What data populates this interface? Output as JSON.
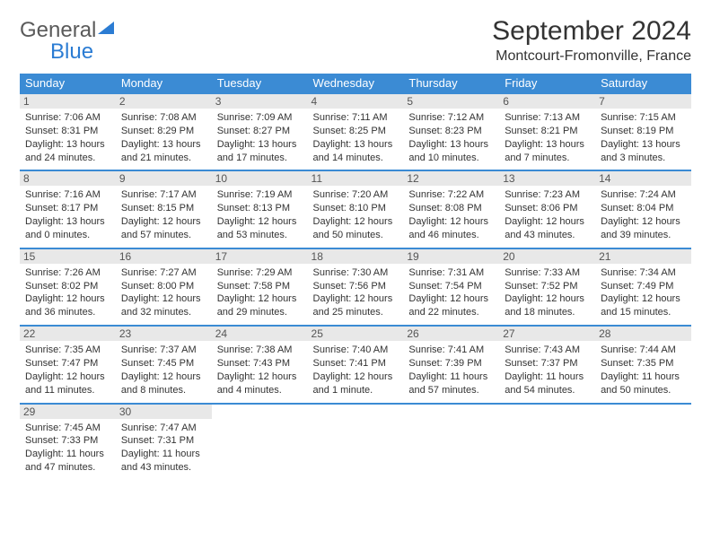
{
  "logo": {
    "word1": "General",
    "word2": "Blue"
  },
  "title": "September 2024",
  "location": "Montcourt-Fromonville, France",
  "colors": {
    "header_bg": "#3b8bd4",
    "header_text": "#ffffff",
    "row_divider": "#3b8bd4",
    "daynum_bg": "#e8e8e8",
    "logo_gray": "#5a5a5a",
    "logo_blue": "#2b7cd3",
    "body_text": "#333333",
    "background": "#ffffff"
  },
  "typography": {
    "title_fontsize": 30,
    "location_fontsize": 16,
    "dayheader_fontsize": 13,
    "daynum_fontsize": 12,
    "cell_fontsize": 11
  },
  "day_headers": [
    "Sunday",
    "Monday",
    "Tuesday",
    "Wednesday",
    "Thursday",
    "Friday",
    "Saturday"
  ],
  "weeks": [
    [
      {
        "n": "1",
        "sr": "Sunrise: 7:06 AM",
        "ss": "Sunset: 8:31 PM",
        "d1": "Daylight: 13 hours",
        "d2": "and 24 minutes."
      },
      {
        "n": "2",
        "sr": "Sunrise: 7:08 AM",
        "ss": "Sunset: 8:29 PM",
        "d1": "Daylight: 13 hours",
        "d2": "and 21 minutes."
      },
      {
        "n": "3",
        "sr": "Sunrise: 7:09 AM",
        "ss": "Sunset: 8:27 PM",
        "d1": "Daylight: 13 hours",
        "d2": "and 17 minutes."
      },
      {
        "n": "4",
        "sr": "Sunrise: 7:11 AM",
        "ss": "Sunset: 8:25 PM",
        "d1": "Daylight: 13 hours",
        "d2": "and 14 minutes."
      },
      {
        "n": "5",
        "sr": "Sunrise: 7:12 AM",
        "ss": "Sunset: 8:23 PM",
        "d1": "Daylight: 13 hours",
        "d2": "and 10 minutes."
      },
      {
        "n": "6",
        "sr": "Sunrise: 7:13 AM",
        "ss": "Sunset: 8:21 PM",
        "d1": "Daylight: 13 hours",
        "d2": "and 7 minutes."
      },
      {
        "n": "7",
        "sr": "Sunrise: 7:15 AM",
        "ss": "Sunset: 8:19 PM",
        "d1": "Daylight: 13 hours",
        "d2": "and 3 minutes."
      }
    ],
    [
      {
        "n": "8",
        "sr": "Sunrise: 7:16 AM",
        "ss": "Sunset: 8:17 PM",
        "d1": "Daylight: 13 hours",
        "d2": "and 0 minutes."
      },
      {
        "n": "9",
        "sr": "Sunrise: 7:17 AM",
        "ss": "Sunset: 8:15 PM",
        "d1": "Daylight: 12 hours",
        "d2": "and 57 minutes."
      },
      {
        "n": "10",
        "sr": "Sunrise: 7:19 AM",
        "ss": "Sunset: 8:13 PM",
        "d1": "Daylight: 12 hours",
        "d2": "and 53 minutes."
      },
      {
        "n": "11",
        "sr": "Sunrise: 7:20 AM",
        "ss": "Sunset: 8:10 PM",
        "d1": "Daylight: 12 hours",
        "d2": "and 50 minutes."
      },
      {
        "n": "12",
        "sr": "Sunrise: 7:22 AM",
        "ss": "Sunset: 8:08 PM",
        "d1": "Daylight: 12 hours",
        "d2": "and 46 minutes."
      },
      {
        "n": "13",
        "sr": "Sunrise: 7:23 AM",
        "ss": "Sunset: 8:06 PM",
        "d1": "Daylight: 12 hours",
        "d2": "and 43 minutes."
      },
      {
        "n": "14",
        "sr": "Sunrise: 7:24 AM",
        "ss": "Sunset: 8:04 PM",
        "d1": "Daylight: 12 hours",
        "d2": "and 39 minutes."
      }
    ],
    [
      {
        "n": "15",
        "sr": "Sunrise: 7:26 AM",
        "ss": "Sunset: 8:02 PM",
        "d1": "Daylight: 12 hours",
        "d2": "and 36 minutes."
      },
      {
        "n": "16",
        "sr": "Sunrise: 7:27 AM",
        "ss": "Sunset: 8:00 PM",
        "d1": "Daylight: 12 hours",
        "d2": "and 32 minutes."
      },
      {
        "n": "17",
        "sr": "Sunrise: 7:29 AM",
        "ss": "Sunset: 7:58 PM",
        "d1": "Daylight: 12 hours",
        "d2": "and 29 minutes."
      },
      {
        "n": "18",
        "sr": "Sunrise: 7:30 AM",
        "ss": "Sunset: 7:56 PM",
        "d1": "Daylight: 12 hours",
        "d2": "and 25 minutes."
      },
      {
        "n": "19",
        "sr": "Sunrise: 7:31 AM",
        "ss": "Sunset: 7:54 PM",
        "d1": "Daylight: 12 hours",
        "d2": "and 22 minutes."
      },
      {
        "n": "20",
        "sr": "Sunrise: 7:33 AM",
        "ss": "Sunset: 7:52 PM",
        "d1": "Daylight: 12 hours",
        "d2": "and 18 minutes."
      },
      {
        "n": "21",
        "sr": "Sunrise: 7:34 AM",
        "ss": "Sunset: 7:49 PM",
        "d1": "Daylight: 12 hours",
        "d2": "and 15 minutes."
      }
    ],
    [
      {
        "n": "22",
        "sr": "Sunrise: 7:35 AM",
        "ss": "Sunset: 7:47 PM",
        "d1": "Daylight: 12 hours",
        "d2": "and 11 minutes."
      },
      {
        "n": "23",
        "sr": "Sunrise: 7:37 AM",
        "ss": "Sunset: 7:45 PM",
        "d1": "Daylight: 12 hours",
        "d2": "and 8 minutes."
      },
      {
        "n": "24",
        "sr": "Sunrise: 7:38 AM",
        "ss": "Sunset: 7:43 PM",
        "d1": "Daylight: 12 hours",
        "d2": "and 4 minutes."
      },
      {
        "n": "25",
        "sr": "Sunrise: 7:40 AM",
        "ss": "Sunset: 7:41 PM",
        "d1": "Daylight: 12 hours",
        "d2": "and 1 minute."
      },
      {
        "n": "26",
        "sr": "Sunrise: 7:41 AM",
        "ss": "Sunset: 7:39 PM",
        "d1": "Daylight: 11 hours",
        "d2": "and 57 minutes."
      },
      {
        "n": "27",
        "sr": "Sunrise: 7:43 AM",
        "ss": "Sunset: 7:37 PM",
        "d1": "Daylight: 11 hours",
        "d2": "and 54 minutes."
      },
      {
        "n": "28",
        "sr": "Sunrise: 7:44 AM",
        "ss": "Sunset: 7:35 PM",
        "d1": "Daylight: 11 hours",
        "d2": "and 50 minutes."
      }
    ],
    [
      {
        "n": "29",
        "sr": "Sunrise: 7:45 AM",
        "ss": "Sunset: 7:33 PM",
        "d1": "Daylight: 11 hours",
        "d2": "and 47 minutes."
      },
      {
        "n": "30",
        "sr": "Sunrise: 7:47 AM",
        "ss": "Sunset: 7:31 PM",
        "d1": "Daylight: 11 hours",
        "d2": "and 43 minutes."
      },
      null,
      null,
      null,
      null,
      null
    ]
  ]
}
